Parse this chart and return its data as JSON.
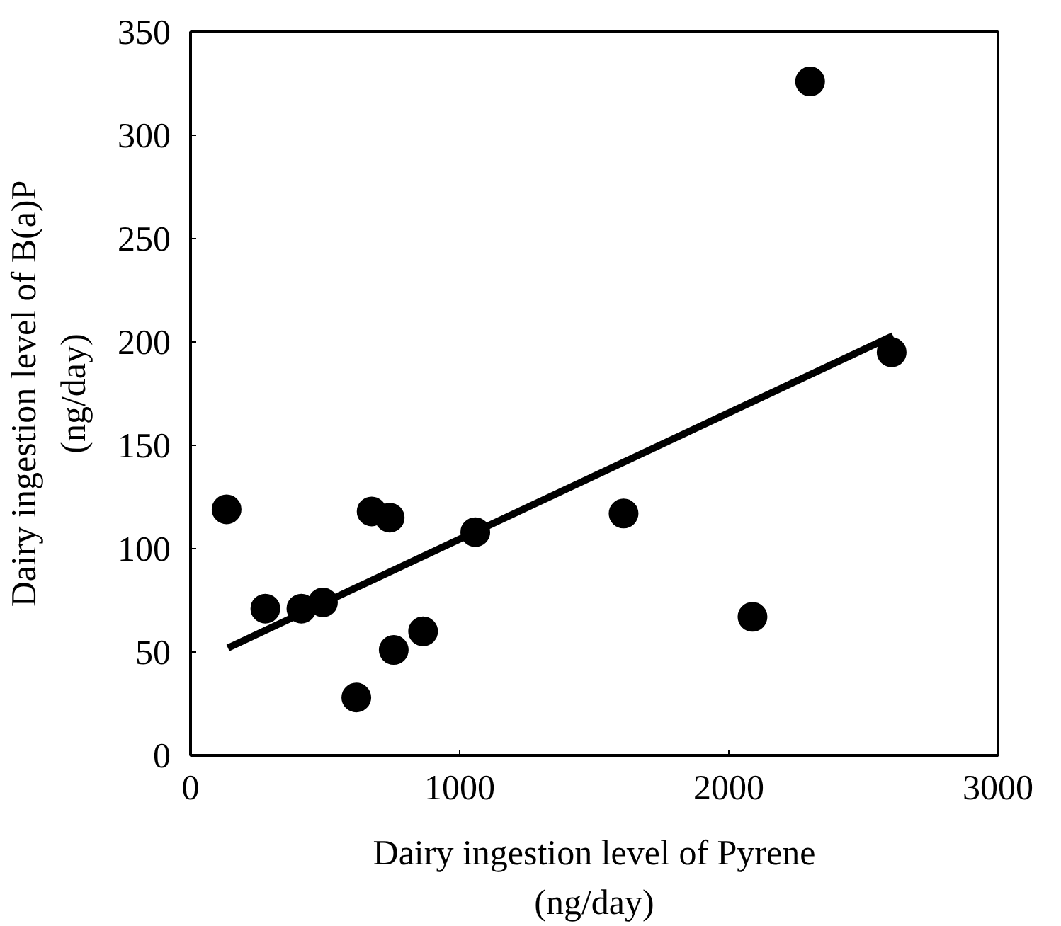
{
  "chart_data": {
    "type": "scatter",
    "xlabel": "Dairy ingestion level of Pyrene\n(ng/day)",
    "ylabel": "Dairy ingestion level of B(a)P\n(ng/day)",
    "xlim": [
      0,
      3000
    ],
    "ylim": [
      0,
      350
    ],
    "xticks": [
      0,
      1000,
      2000,
      3000
    ],
    "yticks": [
      0,
      50,
      100,
      150,
      200,
      250,
      300,
      350
    ],
    "grid": false,
    "marker": "circle",
    "series": [
      {
        "color": "#000000",
        "x": [
          134,
          278,
          412,
          492,
          616,
          673,
          740,
          755,
          864,
          1058,
          1609,
          2088,
          2302,
          2605
        ],
        "values": [
          119,
          71,
          71,
          74,
          28,
          118,
          115,
          51,
          60,
          108,
          117,
          67,
          326,
          195
        ]
      },
      {
        "type": "line",
        "color": "#000000",
        "x": [
          139,
          2610
        ],
        "values": [
          52,
          203
        ],
        "marker": "none",
        "line_style": "solid"
      }
    ]
  }
}
